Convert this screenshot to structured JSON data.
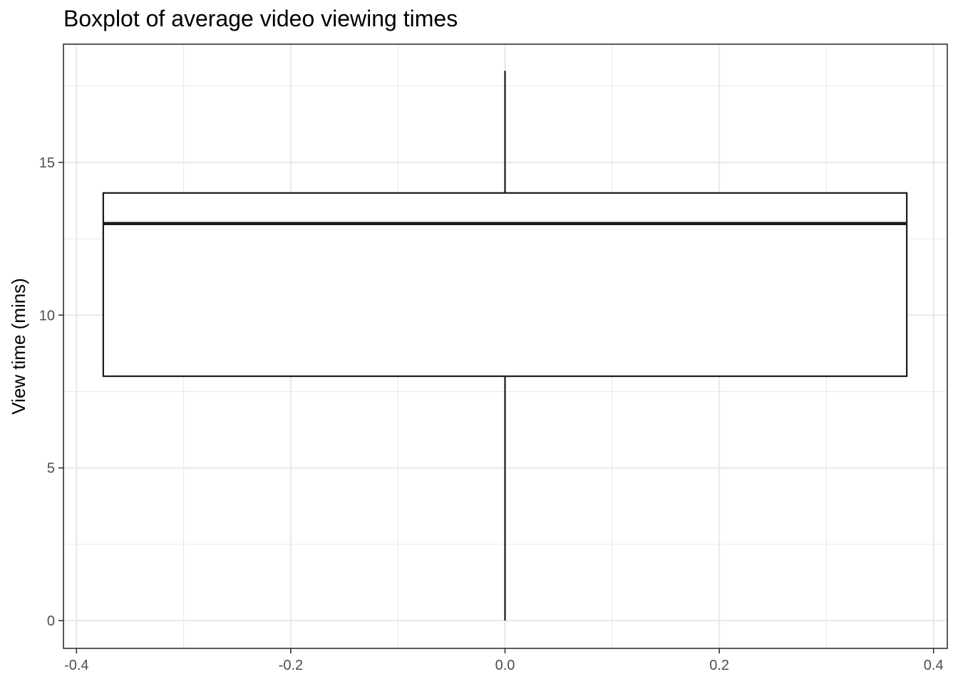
{
  "chart_data": {
    "type": "boxplot",
    "title": "Boxplot of average video viewing times",
    "xlabel": "",
    "ylabel": "View time (mins)",
    "xlim": [
      -0.4,
      0.4
    ],
    "ylim": [
      0,
      18
    ],
    "x_ticks": [
      "-0.4",
      "-0.2",
      "0.0",
      "0.2",
      "0.4"
    ],
    "y_ticks": [
      "0",
      "5",
      "10",
      "15"
    ],
    "box": {
      "x_center": 0.0,
      "x_min": -0.375,
      "x_max": 0.375,
      "whisker_low": 0,
      "q1": 8,
      "median": 13,
      "q3": 14,
      "whisker_high": 18
    },
    "grid": true,
    "colors": {
      "box_line": "#1a1a1a",
      "grid": "#ebebeb",
      "panel_border": "#333333",
      "tick_text": "#4d4d4d"
    }
  }
}
